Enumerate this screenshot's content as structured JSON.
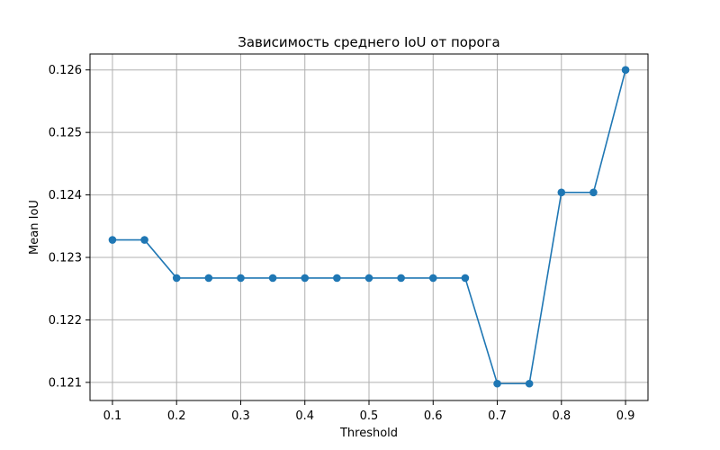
{
  "chart_data": {
    "type": "line",
    "title": "Зависимость среднего IoU от порога",
    "xlabel": "Threshold",
    "ylabel": "Mean IoU",
    "x": [
      0.1,
      0.15,
      0.2,
      0.25,
      0.3,
      0.35,
      0.4,
      0.45,
      0.5,
      0.55,
      0.6,
      0.65,
      0.7,
      0.75,
      0.8,
      0.85,
      0.9
    ],
    "series": [
      {
        "values": [
          0.12328,
          0.12328,
          0.12267,
          0.12267,
          0.12267,
          0.12267,
          0.12267,
          0.12267,
          0.12267,
          0.12267,
          0.12267,
          0.12267,
          0.12098,
          0.12098,
          0.12404,
          0.12404,
          0.126
        ],
        "color": "#1f77b4",
        "marker": "circle"
      }
    ],
    "xlim": [
      0.065,
      0.935
    ],
    "ylim": [
      0.12071,
      0.126255
    ],
    "xticks": [
      "0.1",
      "0.2",
      "0.3",
      "0.4",
      "0.5",
      "0.6",
      "0.7",
      "0.8",
      "0.9"
    ],
    "xtick_values": [
      0.1,
      0.2,
      0.3,
      0.4,
      0.5,
      0.6,
      0.7,
      0.8,
      0.9
    ],
    "yticks": [
      "0.121",
      "0.122",
      "0.123",
      "0.124",
      "0.125",
      "0.126"
    ],
    "ytick_values": [
      0.121,
      0.122,
      0.123,
      0.124,
      0.125,
      0.126
    ],
    "grid": true
  }
}
